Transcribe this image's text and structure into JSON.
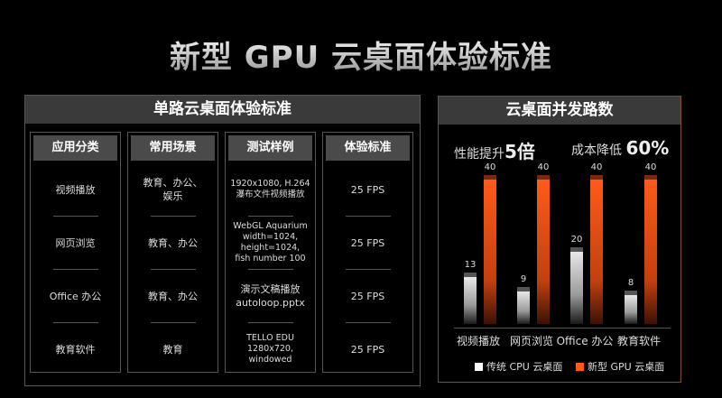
{
  "title": "新型 GPU 云桌面体验标准",
  "left_panel": {
    "header": "单路云桌面体验标准",
    "columns": [
      {
        "header": "应用分类",
        "cells": [
          "视频播放",
          "网页浏览",
          "Office 办公",
          "教育软件"
        ]
      },
      {
        "header": "常用场景",
        "cells": [
          "教育、办公、\n娱乐",
          "教育、办公",
          "教育、办公",
          "教育"
        ]
      },
      {
        "header": "测试样例",
        "cells": [
          "1920x1080, H.264\n瀑布文件视频播放",
          "WebGL Aquarium\nwidth=1024, height=1024,\nfish number 100",
          "演示文稿播放\nautoloop.pptx",
          "TELLO EDU\n1280x720, windowed"
        ]
      },
      {
        "header": "体验标准",
        "cells": [
          "25 FPS",
          "25 FPS",
          "25 FPS",
          "25 FPS"
        ]
      }
    ]
  },
  "right_panel": {
    "header": "云桌面并发路数",
    "stat_perf_label": "性能提升",
    "stat_perf_value": "5倍",
    "stat_cost_label": "成本降低",
    "stat_cost_value": "60%",
    "legend_cpu": "传统 CPU 云桌面",
    "legend_gpu": "新型 GPU 云桌面"
  },
  "colors": {
    "gpu": "#ff5a1a",
    "cpu": "#e8e8e8",
    "header_bg": "#3a3a3a"
  },
  "chart_data": {
    "type": "bar",
    "title": "云桌面并发路数",
    "categories": [
      "视频播放",
      "网页浏览",
      "Office 办公",
      "教育软件"
    ],
    "series": [
      {
        "name": "传统 CPU 云桌面",
        "values": [
          13,
          9,
          20,
          8
        ]
      },
      {
        "name": "新型 GPU 云桌面",
        "values": [
          40,
          40,
          40,
          40
        ]
      }
    ],
    "annotations": [
      "性能提升5倍",
      "成本降低 60%"
    ],
    "grid": false,
    "legend_position": "bottom"
  }
}
